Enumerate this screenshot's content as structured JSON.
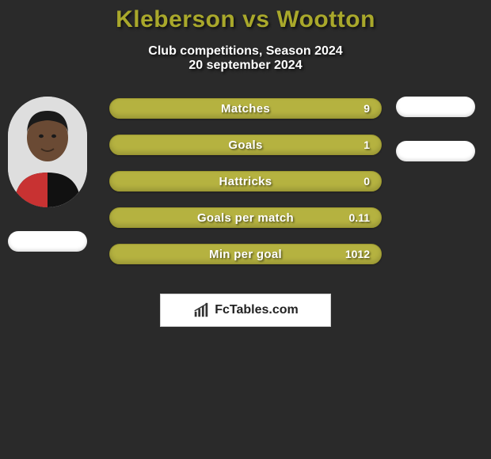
{
  "title": {
    "text": "Kleberson vs Wootton",
    "color": "#a9a82b",
    "fontsize": 30
  },
  "subtitle": "Club competitions, Season 2024",
  "date": "20 september 2024",
  "background_color": "#2a2a2a",
  "bar_style": {
    "fill": "#b5b240",
    "border": "#9a9630",
    "height": 26,
    "radius": 13,
    "label_color": "#ffffff",
    "value_color": "#ffffff",
    "label_fontsize": 15,
    "value_fontsize": 14
  },
  "stats": [
    {
      "label": "Matches",
      "value": "9"
    },
    {
      "label": "Goals",
      "value": "1"
    },
    {
      "label": "Hattricks",
      "value": "0"
    },
    {
      "label": "Goals per match",
      "value": "0.11"
    },
    {
      "label": "Min per goal",
      "value": "1012"
    }
  ],
  "player_left": {
    "avatar": {
      "skin": "#6a4a34",
      "hair": "#1a1a1a",
      "jersey_red": "#c83232",
      "jersey_black": "#111111",
      "bg": "#dedede"
    },
    "flag_bg": "#ffffff"
  },
  "player_right": {
    "flags": [
      {
        "bg": "#ffffff"
      },
      {
        "bg": "#ffffff"
      }
    ]
  },
  "brand": {
    "text": "FcTables.com",
    "box_bg": "#ffffff",
    "box_border": "#d0d0d0",
    "icon_color": "#333333",
    "text_color": "#222222"
  }
}
